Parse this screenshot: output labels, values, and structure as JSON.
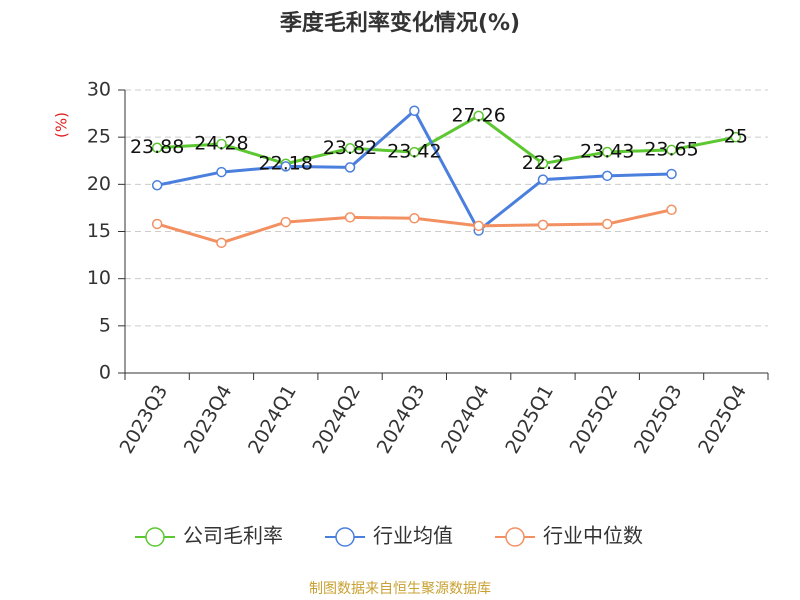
{
  "chart_data": {
    "type": "line",
    "title": "季度毛利率变化情况(%)",
    "y_label": "(%)",
    "categories": [
      "2023Q3",
      "2023Q4",
      "2024Q1",
      "2024Q2",
      "2024Q3",
      "2024Q4",
      "2025Q1",
      "2025Q2",
      "2025Q3",
      "2025Q4"
    ],
    "series": [
      {
        "name": "公司毛利率",
        "color": "#5cc730",
        "values": [
          23.88,
          24.28,
          22.18,
          23.82,
          23.42,
          27.26,
          22.2,
          23.43,
          23.65,
          25
        ],
        "show_labels": true
      },
      {
        "name": "行业均值",
        "color": "#4a7fdd",
        "values": [
          19.9,
          21.3,
          21.9,
          21.8,
          27.8,
          15.1,
          20.5,
          20.9,
          21.1,
          null
        ],
        "show_labels": false
      },
      {
        "name": "行业中位数",
        "color": "#f39062",
        "values": [
          15.8,
          13.8,
          16.0,
          16.5,
          16.4,
          15.6,
          15.7,
          15.8,
          17.3,
          null
        ],
        "show_labels": false
      }
    ],
    "ylim": [
      0,
      30
    ],
    "yticks": [
      0,
      5,
      10,
      15,
      20,
      25,
      30
    ],
    "grid": true,
    "source": "制图数据来自恒生聚源数据库"
  }
}
